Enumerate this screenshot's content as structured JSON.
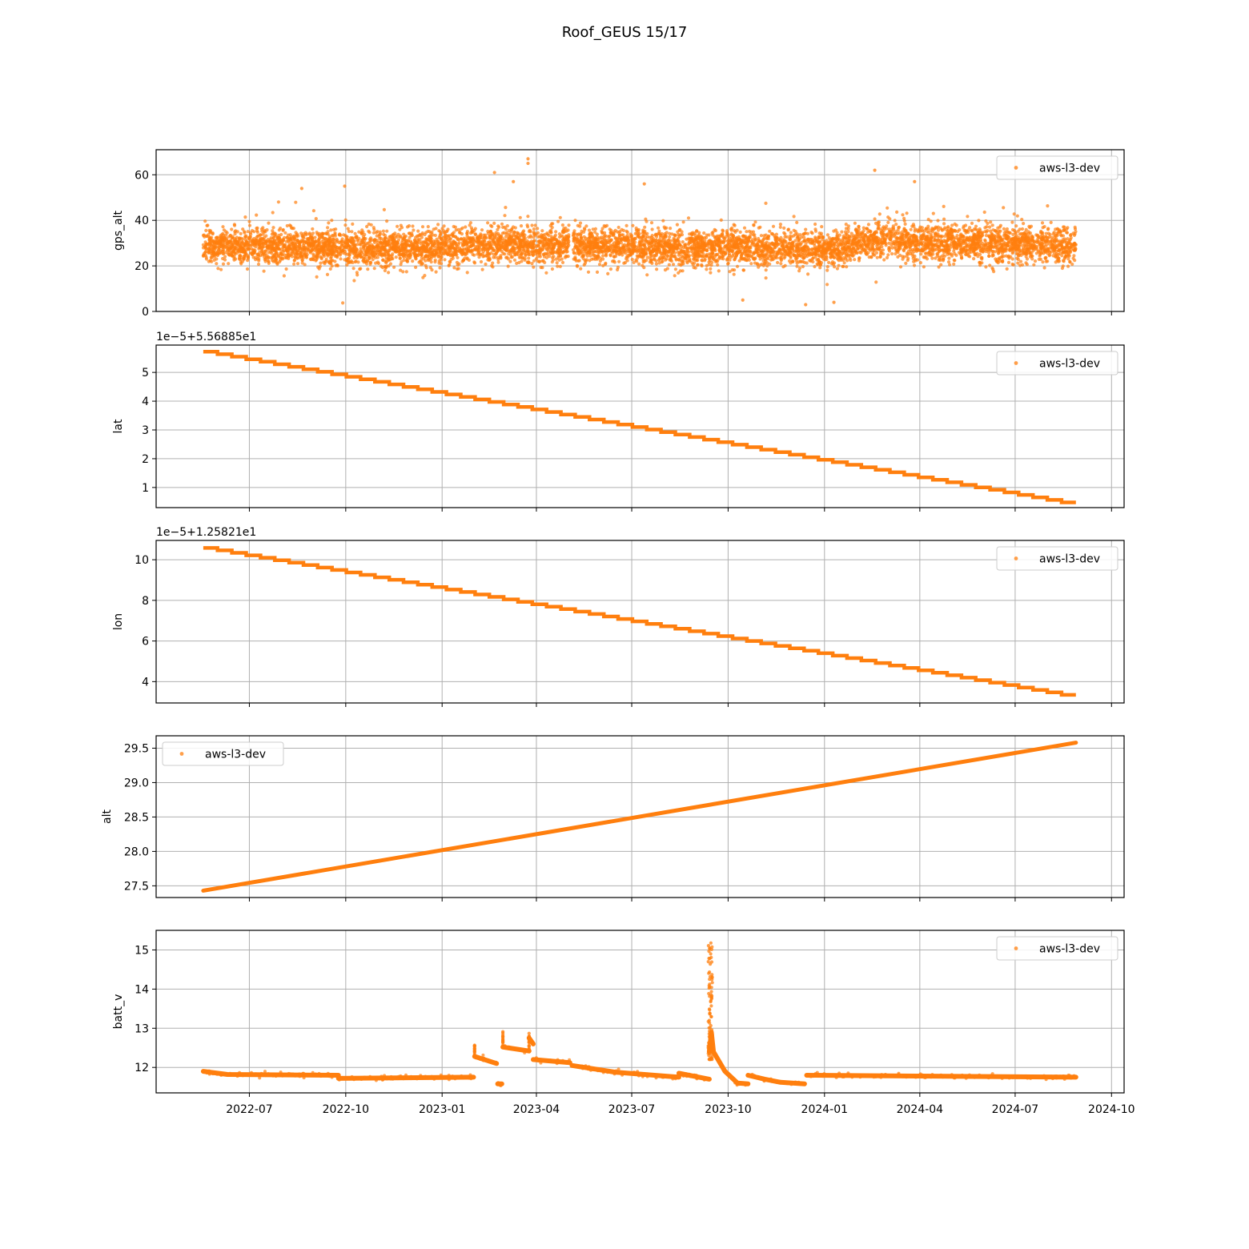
{
  "figure": {
    "title": "Roof_GEUS 15/17",
    "series_color": "#ff7f0e",
    "grid_color": "#b0b0b0"
  },
  "x_axis": {
    "type": "date",
    "range": [
      "2022-04-03",
      "2024-10-13"
    ],
    "ticks": [
      "2022-07",
      "2022-10",
      "2023-01",
      "2023-04",
      "2023-07",
      "2023-10",
      "2024-01",
      "2024-04",
      "2024-07",
      "2024-10"
    ],
    "tick_dates": [
      "2022-07-01",
      "2022-10-01",
      "2023-01-01",
      "2023-04-01",
      "2023-07-01",
      "2023-10-01",
      "2024-01-01",
      "2024-04-01",
      "2024-07-01",
      "2024-10-01"
    ]
  },
  "chart_data": [
    {
      "type": "scatter",
      "ylabel": "gps_alt",
      "offset_label": "",
      "ylim": [
        0,
        71
      ],
      "yticks": [
        0,
        20,
        40,
        60
      ],
      "ytick_labels": [
        "0",
        "20",
        "40",
        "60"
      ],
      "legend": {
        "label": "aws-l3-dev",
        "placement": "upper right"
      },
      "grid": true,
      "series": [
        {
          "name": "aws-l3-dev",
          "kind": "noisy band",
          "x_range": [
            "2022-05-18",
            "2024-08-28"
          ],
          "band_center": [
            {
              "x": "2022-05-18",
              "y": 29
            },
            {
              "x": "2022-10-01",
              "y": 28
            },
            {
              "x": "2023-01-01",
              "y": 28
            },
            {
              "x": "2023-03-01",
              "y": 30
            },
            {
              "x": "2023-05-01",
              "y": 29
            },
            {
              "x": "2023-10-01",
              "y": 28
            },
            {
              "x": "2024-01-01",
              "y": 27
            },
            {
              "x": "2024-02-20",
              "y": 31
            },
            {
              "x": "2024-08-28",
              "y": 29
            }
          ],
          "gap": [
            "2023-05-02",
            "2023-05-06"
          ],
          "outliers": [
            {
              "x": "2023-03-24",
              "y": 67
            },
            {
              "x": "2023-03-24",
              "y": 65
            },
            {
              "x": "2023-02-20",
              "y": 61
            },
            {
              "x": "2024-02-18",
              "y": 62
            },
            {
              "x": "2023-07-13",
              "y": 56
            },
            {
              "x": "2024-03-27",
              "y": 57
            },
            {
              "x": "2022-08-20",
              "y": 54
            },
            {
              "x": "2023-12-14",
              "y": 3
            },
            {
              "x": "2023-10-15",
              "y": 5
            },
            {
              "x": "2022-09-30",
              "y": 55
            },
            {
              "x": "2024-01-10",
              "y": 4
            },
            {
              "x": "2023-03-10",
              "y": 57
            }
          ]
        }
      ]
    },
    {
      "type": "scatter",
      "ylabel": "lat",
      "offset_label": "1e−5+5.56885e1",
      "ylim": [
        0.3,
        5.95
      ],
      "yticks": [
        1,
        2,
        3,
        4,
        5
      ],
      "ytick_labels": [
        "1",
        "2",
        "3",
        "4",
        "5"
      ],
      "legend": {
        "label": "aws-l3-dev",
        "placement": "upper right"
      },
      "grid": true,
      "series": [
        {
          "name": "aws-l3-dev",
          "kind": "staircase",
          "x_range": [
            "2022-05-18",
            "2024-08-28"
          ],
          "y_start": 5.72,
          "y_end": 0.48,
          "steps": 61
        }
      ]
    },
    {
      "type": "scatter",
      "ylabel": "lon",
      "offset_label": "1e−5+1.25821e1",
      "ylim": [
        2.95,
        10.95
      ],
      "yticks": [
        4,
        6,
        8,
        10
      ],
      "ytick_labels": [
        "4",
        "6",
        "8",
        "10"
      ],
      "legend": {
        "label": "aws-l3-dev",
        "placement": "upper right"
      },
      "grid": true,
      "series": [
        {
          "name": "aws-l3-dev",
          "kind": "staircase",
          "x_range": [
            "2022-05-18",
            "2024-08-28"
          ],
          "y_start": 10.58,
          "y_end": 3.35,
          "steps": 61
        }
      ]
    },
    {
      "type": "scatter",
      "ylabel": "alt",
      "offset_label": "",
      "ylim": [
        27.33,
        29.68
      ],
      "yticks": [
        27.5,
        28.0,
        28.5,
        29.0,
        29.5
      ],
      "ytick_labels": [
        "27.5",
        "28.0",
        "28.5",
        "29.0",
        "29.5"
      ],
      "legend": {
        "label": "aws-l3-dev",
        "placement": "upper left"
      },
      "grid": true,
      "series": [
        {
          "name": "aws-l3-dev",
          "kind": "line",
          "points": [
            {
              "x": "2022-05-18",
              "y": 27.43
            },
            {
              "x": "2024-08-28",
              "y": 29.58
            }
          ]
        }
      ]
    },
    {
      "type": "scatter",
      "ylabel": "batt_v",
      "offset_label": "",
      "ylim": [
        11.35,
        15.5
      ],
      "yticks": [
        12,
        13,
        14,
        15
      ],
      "ytick_labels": [
        "12",
        "13",
        "14",
        "15"
      ],
      "legend": {
        "label": "aws-l3-dev",
        "placement": "upper right"
      },
      "grid": true,
      "series": [
        {
          "name": "aws-l3-dev",
          "kind": "segments",
          "segments": [
            [
              {
                "x": "2022-05-18",
                "y": 11.9
              },
              {
                "x": "2022-06-10",
                "y": 11.82
              },
              {
                "x": "2022-09-24",
                "y": 11.8
              }
            ],
            [
              {
                "x": "2022-09-24",
                "y": 11.72
              },
              {
                "x": "2023-01-31",
                "y": 11.75
              }
            ],
            [
              {
                "x": "2023-02-01",
                "y": 12.28
              },
              {
                "x": "2023-02-22",
                "y": 12.1
              }
            ],
            [
              {
                "x": "2023-02-23",
                "y": 11.58
              },
              {
                "x": "2023-02-27",
                "y": 11.58
              }
            ],
            [
              {
                "x": "2023-02-28",
                "y": 12.52
              },
              {
                "x": "2023-03-25",
                "y": 12.42
              }
            ],
            [
              {
                "x": "2023-03-25",
                "y": 12.75
              },
              {
                "x": "2023-03-29",
                "y": 12.6
              }
            ],
            [
              {
                "x": "2023-03-29",
                "y": 12.2
              },
              {
                "x": "2023-05-03",
                "y": 12.12
              }
            ],
            [
              {
                "x": "2023-05-05",
                "y": 12.05
              },
              {
                "x": "2023-06-15",
                "y": 11.88
              },
              {
                "x": "2023-08-15",
                "y": 11.75
              }
            ],
            [
              {
                "x": "2023-08-15",
                "y": 11.85
              },
              {
                "x": "2023-09-13",
                "y": 11.7
              }
            ],
            [
              {
                "x": "2023-09-13",
                "y": 12.4
              },
              {
                "x": "2023-09-15",
                "y": 12.9
              },
              {
                "x": "2023-09-17",
                "y": 12.4
              },
              {
                "x": "2023-09-28",
                "y": 11.9
              },
              {
                "x": "2023-10-10",
                "y": 11.6
              },
              {
                "x": "2023-10-20",
                "y": 11.58
              }
            ],
            [
              {
                "x": "2023-10-20",
                "y": 11.8
              },
              {
                "x": "2023-11-05",
                "y": 11.7
              },
              {
                "x": "2023-11-20",
                "y": 11.62
              },
              {
                "x": "2023-12-13",
                "y": 11.58
              }
            ],
            [
              {
                "x": "2023-12-15",
                "y": 11.8
              },
              {
                "x": "2024-04-01",
                "y": 11.78
              },
              {
                "x": "2024-08-28",
                "y": 11.75
              }
            ]
          ],
          "spike": {
            "x": "2023-09-14",
            "y_min": 12.2,
            "y_max": 15.3
          },
          "jump_markers": [
            {
              "x": "2023-02-01",
              "y_min": 12.3,
              "y_max": 12.62
            },
            {
              "x": "2023-02-28",
              "y_min": 12.5,
              "y_max": 12.95
            },
            {
              "x": "2023-03-25",
              "y_min": 12.45,
              "y_max": 12.95
            }
          ]
        }
      ]
    }
  ]
}
